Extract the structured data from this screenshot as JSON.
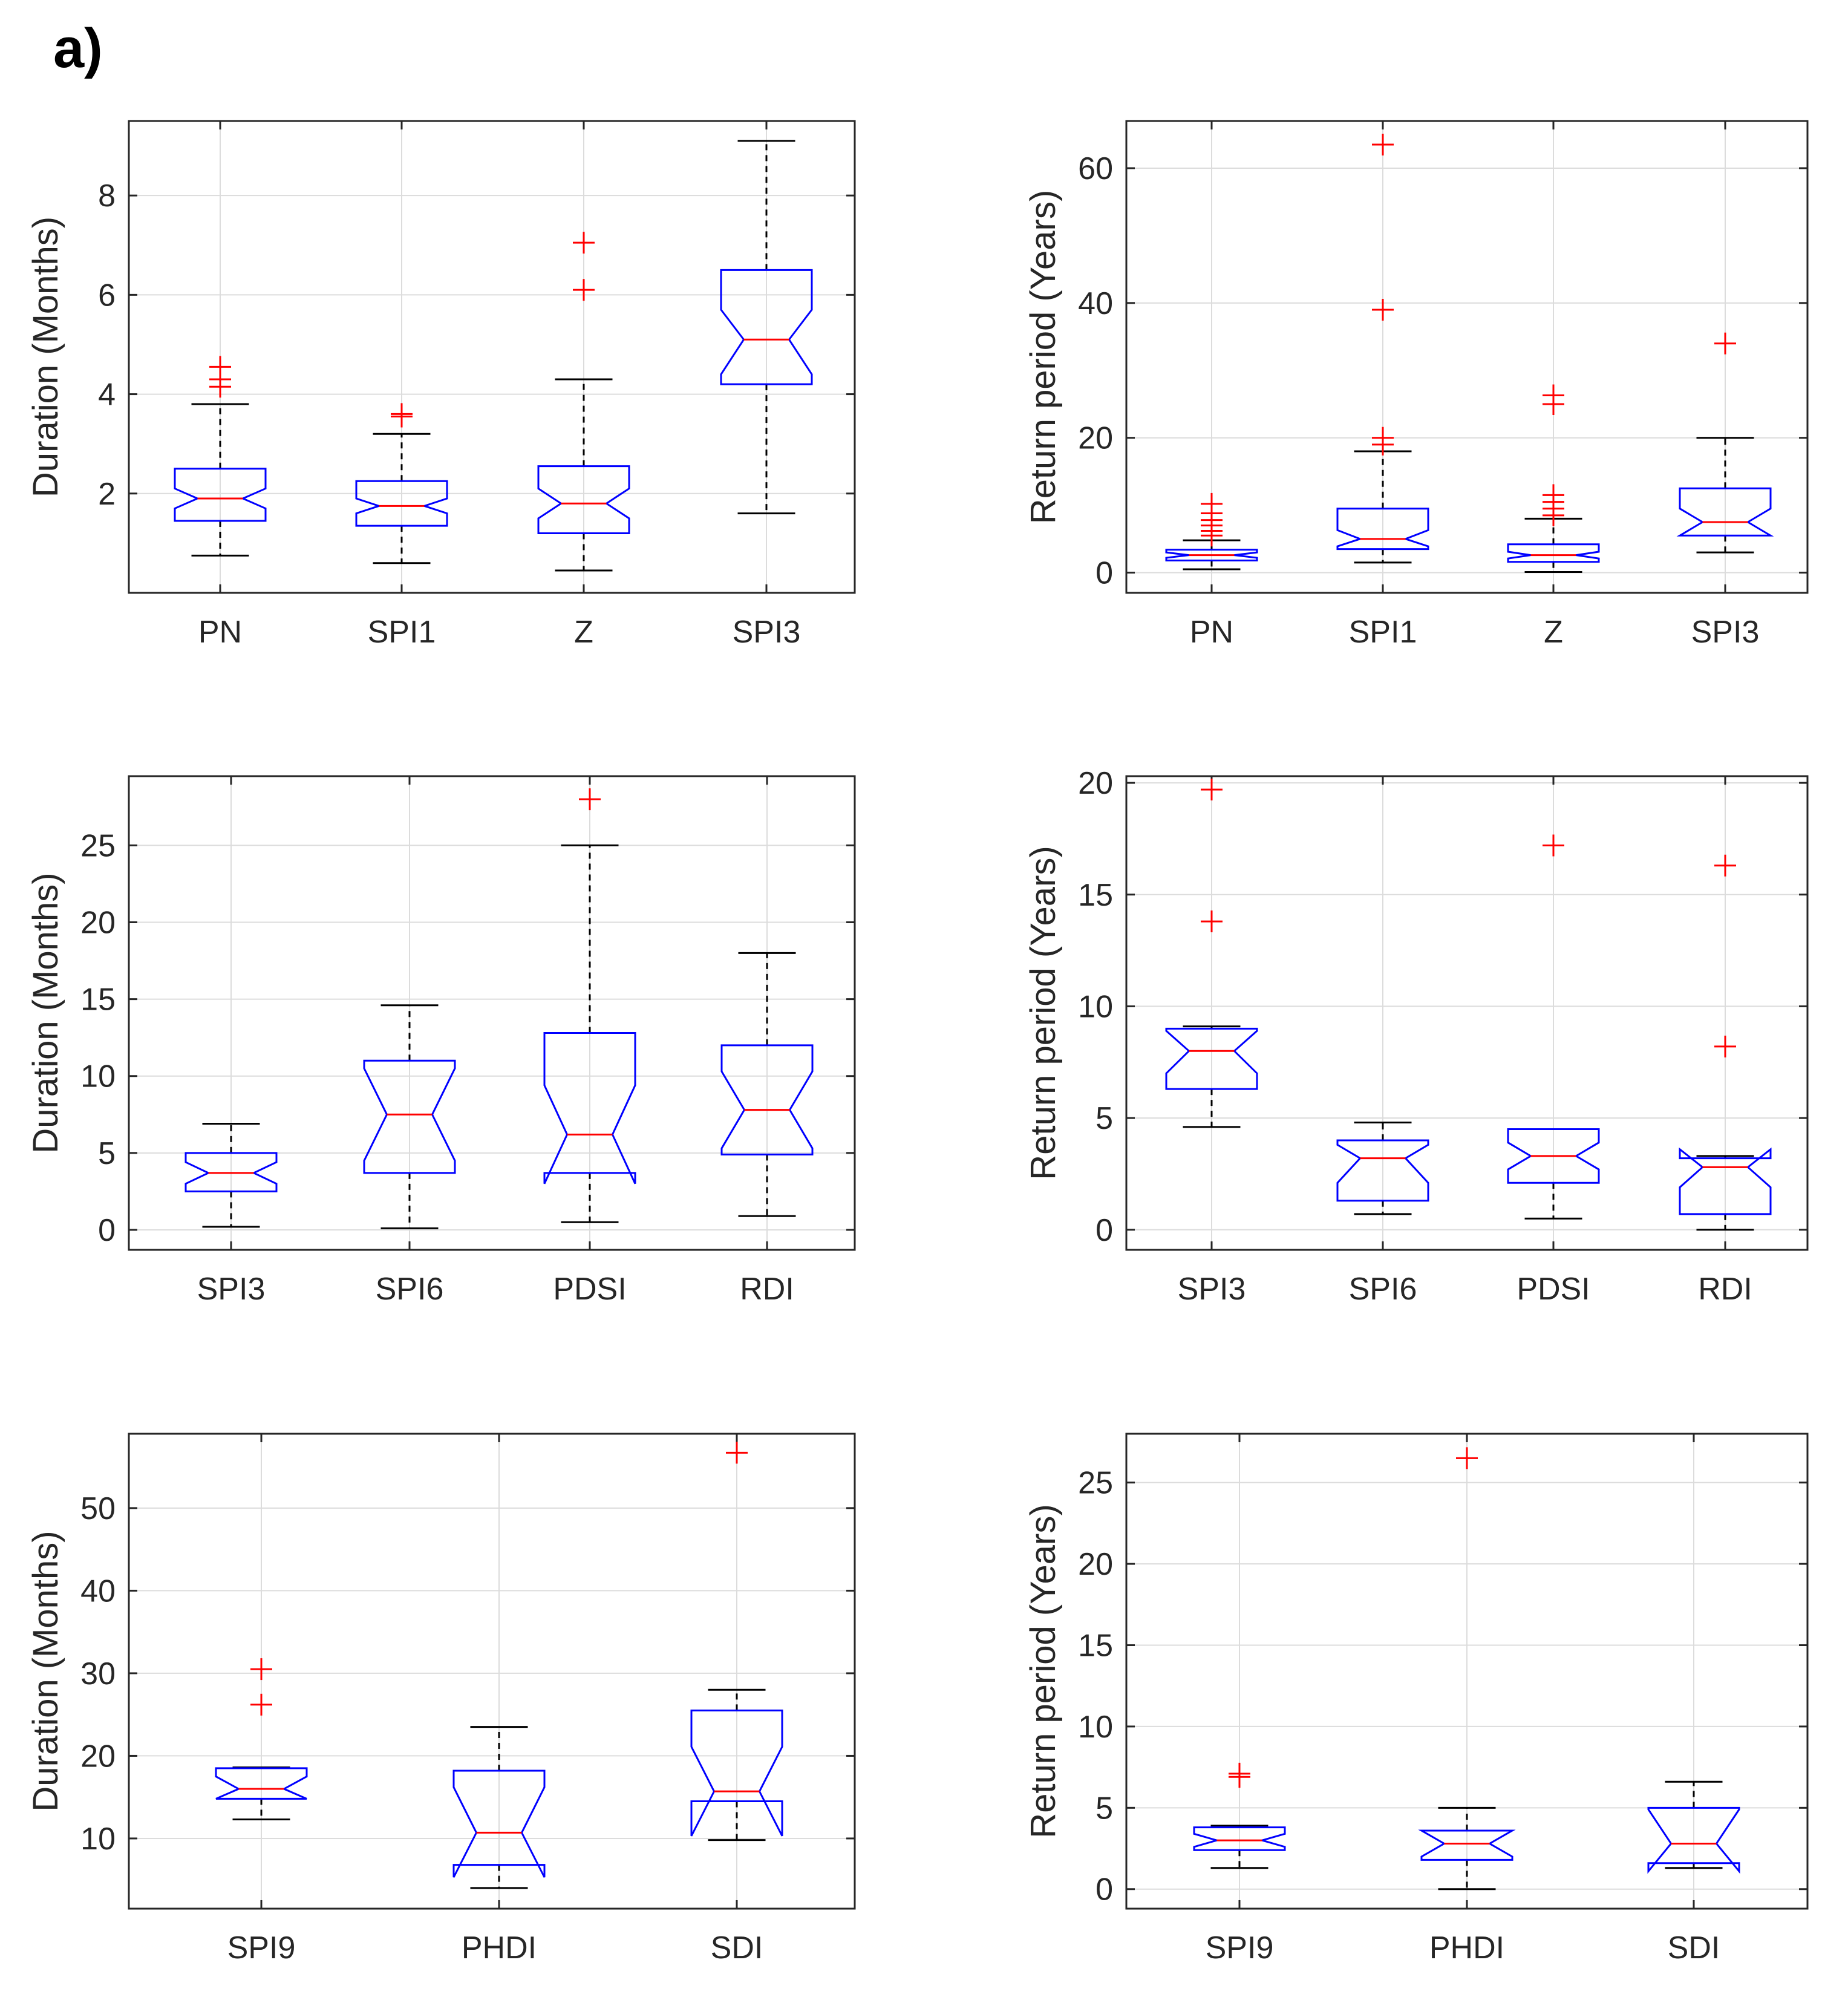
{
  "figure_label": "a)",
  "chart_data": [
    {
      "type": "boxplot",
      "ylabel": "Duration (Months)",
      "ylim": [
        0,
        9.5
      ],
      "yticks": [
        2,
        4,
        6,
        8
      ],
      "categories": [
        "PN",
        "SPI1",
        "Z",
        "SPI3"
      ],
      "boxes": [
        {
          "category": "PN",
          "q1": 1.45,
          "median": 1.9,
          "q3": 2.5,
          "notch_lo": 1.7,
          "notch_hi": 2.1,
          "whisker_lo": 0.75,
          "whisker_hi": 3.8,
          "outliers": [
            4.15,
            4.3,
            4.55
          ]
        },
        {
          "category": "SPI1",
          "q1": 1.35,
          "median": 1.75,
          "q3": 2.25,
          "notch_lo": 1.6,
          "notch_hi": 1.9,
          "whisker_lo": 0.6,
          "whisker_hi": 3.2,
          "outliers": [
            3.55,
            3.6
          ]
        },
        {
          "category": "Z",
          "q1": 1.2,
          "median": 1.8,
          "q3": 2.55,
          "notch_lo": 1.5,
          "notch_hi": 2.1,
          "whisker_lo": 0.45,
          "whisker_hi": 4.3,
          "outliers": [
            6.1,
            7.05
          ]
        },
        {
          "category": "SPI3",
          "q1": 4.2,
          "median": 5.1,
          "q3": 6.5,
          "notch_lo": 4.4,
          "notch_hi": 5.7,
          "whisker_lo": 1.6,
          "whisker_hi": 9.1,
          "outliers": []
        }
      ]
    },
    {
      "type": "boxplot",
      "ylabel": "Return period (Years)",
      "ylim": [
        -3,
        67
      ],
      "yticks": [
        0,
        20,
        40,
        60
      ],
      "categories": [
        "PN",
        "SPI1",
        "Z",
        "SPI3"
      ],
      "boxes": [
        {
          "category": "PN",
          "q1": 1.8,
          "median": 2.6,
          "q3": 3.4,
          "notch_lo": 2.2,
          "notch_hi": 3.0,
          "whisker_lo": 0.5,
          "whisker_hi": 4.8,
          "outliers": [
            5.5,
            6.2,
            7.0,
            7.8,
            8.8,
            10.2
          ]
        },
        {
          "category": "SPI1",
          "q1": 3.5,
          "median": 5.0,
          "q3": 9.5,
          "notch_lo": 3.9,
          "notch_hi": 6.3,
          "whisker_lo": 1.5,
          "whisker_hi": 18.0,
          "outliers": [
            19.0,
            20.0,
            39.0,
            63.5
          ]
        },
        {
          "category": "Z",
          "q1": 1.6,
          "median": 2.6,
          "q3": 4.2,
          "notch_lo": 2.1,
          "notch_hi": 3.1,
          "whisker_lo": 0.1,
          "whisker_hi": 8.0,
          "outliers": [
            8.5,
            9.5,
            10.5,
            11.5,
            25.0,
            26.3
          ]
        },
        {
          "category": "SPI3",
          "q1": 5.5,
          "median": 7.5,
          "q3": 12.5,
          "notch_lo": 5.5,
          "notch_hi": 9.5,
          "whisker_lo": 3.0,
          "whisker_hi": 20.0,
          "outliers": [
            34.0
          ]
        }
      ]
    },
    {
      "type": "boxplot",
      "ylabel": "Duration (Months)",
      "ylim": [
        -1.3,
        29.5
      ],
      "yticks": [
        0,
        5,
        10,
        15,
        20,
        25
      ],
      "categories": [
        "SPI3",
        "SPI6",
        "PDSI",
        "RDI"
      ],
      "boxes": [
        {
          "category": "SPI3",
          "q1": 2.5,
          "median": 3.7,
          "q3": 5.0,
          "notch_lo": 3.0,
          "notch_hi": 4.4,
          "whisker_lo": 0.2,
          "whisker_hi": 6.9,
          "outliers": []
        },
        {
          "category": "SPI6",
          "q1": 3.7,
          "median": 7.5,
          "q3": 11.0,
          "notch_lo": 4.5,
          "notch_hi": 10.5,
          "whisker_lo": 0.1,
          "whisker_hi": 14.6,
          "outliers": []
        },
        {
          "category": "PDSI",
          "q1": 3.7,
          "median": 6.2,
          "q3": 12.8,
          "notch_lo": 3.0,
          "notch_hi": 9.4,
          "whisker_lo": 0.5,
          "whisker_hi": 25.0,
          "outliers": [
            28.0
          ]
        },
        {
          "category": "RDI",
          "q1": 4.9,
          "median": 7.8,
          "q3": 12.0,
          "notch_lo": 5.3,
          "notch_hi": 10.3,
          "whisker_lo": 0.9,
          "whisker_hi": 18.0,
          "outliers": []
        }
      ]
    },
    {
      "type": "boxplot",
      "ylabel": "Return period (Years)",
      "ylim": [
        -0.9,
        20.3
      ],
      "yticks": [
        0,
        5,
        10,
        15,
        20
      ],
      "categories": [
        "SPI3",
        "SPI6",
        "PDSI",
        "RDI"
      ],
      "boxes": [
        {
          "category": "SPI3",
          "q1": 6.3,
          "median": 8.0,
          "q3": 9.0,
          "notch_lo": 7.0,
          "notch_hi": 8.9,
          "whisker_lo": 4.6,
          "whisker_hi": 9.1,
          "outliers": [
            13.8,
            19.7
          ]
        },
        {
          "category": "SPI6",
          "q1": 1.3,
          "median": 3.2,
          "q3": 4.0,
          "notch_lo": 2.1,
          "notch_hi": 3.8,
          "whisker_lo": 0.7,
          "whisker_hi": 4.8,
          "outliers": []
        },
        {
          "category": "PDSI",
          "q1": 2.1,
          "median": 3.3,
          "q3": 4.5,
          "notch_lo": 2.7,
          "notch_hi": 3.9,
          "whisker_lo": 0.5,
          "whisker_hi": 4.5,
          "outliers": [
            17.2
          ]
        },
        {
          "category": "RDI",
          "q1": 0.7,
          "median": 2.8,
          "q3": 3.2,
          "notch_lo": 1.9,
          "notch_hi": 3.6,
          "whisker_lo": 0.0,
          "whisker_hi": 3.3,
          "outliers": [
            8.2,
            16.3
          ]
        }
      ]
    },
    {
      "type": "boxplot",
      "ylabel": "Duration (Months)",
      "ylim": [
        1.5,
        59
      ],
      "yticks": [
        10,
        20,
        30,
        40,
        50
      ],
      "categories": [
        "SPI9",
        "PHDI",
        "SDI"
      ],
      "boxes": [
        {
          "category": "SPI9",
          "q1": 14.8,
          "median": 16.0,
          "q3": 18.5,
          "notch_lo": 14.8,
          "notch_hi": 17.5,
          "whisker_lo": 12.3,
          "whisker_hi": 18.6,
          "outliers": [
            26.2,
            30.5
          ]
        },
        {
          "category": "PHDI",
          "q1": 6.8,
          "median": 10.7,
          "q3": 18.2,
          "notch_lo": 5.3,
          "notch_hi": 16.2,
          "whisker_lo": 4.0,
          "whisker_hi": 23.5,
          "outliers": []
        },
        {
          "category": "SDI",
          "q1": 14.5,
          "median": 15.7,
          "q3": 25.5,
          "notch_lo": 10.3,
          "notch_hi": 21.1,
          "whisker_lo": 9.8,
          "whisker_hi": 28.0,
          "outliers": [
            56.7
          ]
        }
      ]
    },
    {
      "type": "boxplot",
      "ylabel": "Return period (Years)",
      "ylim": [
        -1.2,
        28
      ],
      "yticks": [
        0,
        5,
        10,
        15,
        20,
        25
      ],
      "categories": [
        "SPI9",
        "PHDI",
        "SDI"
      ],
      "boxes": [
        {
          "category": "SPI9",
          "q1": 2.4,
          "median": 3.0,
          "q3": 3.8,
          "notch_lo": 2.6,
          "notch_hi": 3.4,
          "whisker_lo": 1.3,
          "whisker_hi": 3.9,
          "outliers": [
            6.9,
            7.1
          ]
        },
        {
          "category": "PHDI",
          "q1": 1.8,
          "median": 2.8,
          "q3": 3.6,
          "notch_lo": 2.0,
          "notch_hi": 3.6,
          "whisker_lo": 0.0,
          "whisker_hi": 5.0,
          "outliers": [
            26.5
          ]
        },
        {
          "category": "SDI",
          "q1": 1.6,
          "median": 2.8,
          "q3": 5.0,
          "notch_lo": 1.1,
          "notch_hi": 4.9,
          "whisker_lo": 1.3,
          "whisker_hi": 6.6,
          "outliers": []
        }
      ]
    }
  ]
}
